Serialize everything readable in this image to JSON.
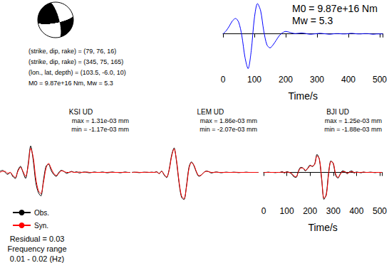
{
  "mechanism": {
    "strike": 79,
    "dip": 76,
    "rake": 16,
    "color": "#000000"
  },
  "source_info": [
    "(strike, dip, rake) = (79, 76, 16)",
    "(strike, dip, rake) = (345, 75, 165)",
    "(lon., lat, depth) = (103.5, -6.0, 10)",
    "M0 = 9.87e+16 Nm, Mw = 5.3"
  ],
  "footer": [
    "Residual = 0.03",
    "Frequency range",
    "0.01 - 0.02 (Hz)"
  ],
  "chart_data": [
    {
      "type": "line",
      "annotations": [
        "M0 = 9.87e+16 Nm",
        "Mw = 5.3"
      ],
      "xlabel": "Time/s",
      "x": [
        0,
        10,
        20,
        30,
        40,
        50,
        60,
        70,
        80,
        90,
        100,
        110,
        120,
        130,
        140,
        150,
        160,
        170,
        180,
        190,
        200,
        210,
        220,
        230,
        240,
        250,
        260,
        270,
        280,
        290,
        300,
        310,
        320,
        330,
        340,
        350,
        360,
        370,
        380,
        390,
        400,
        410,
        420,
        430,
        440,
        450,
        460,
        470,
        480,
        490,
        500,
        510
      ],
      "xlim": [
        0,
        510
      ],
      "xticks": [
        0,
        100,
        200,
        300,
        400,
        500
      ],
      "ylim": [
        -1.2,
        1.05
      ],
      "grid": false,
      "tick_labels": "x",
      "series": [
        {
          "color": "#0000ff",
          "values": [
            0.0,
            0.1,
            0.25,
            0.42,
            0.5,
            0.38,
            -0.05,
            -0.75,
            -1.12,
            -0.55,
            0.5,
            0.98,
            0.75,
            0.1,
            -0.35,
            -0.45,
            -0.35,
            -0.2,
            -0.05,
            0.04,
            0.08,
            0.06,
            0.03,
            0.01,
            0.02,
            0.03,
            0.02,
            0.0,
            -0.01,
            0.0,
            0.01,
            0.02,
            0.01,
            0.0,
            -0.01,
            0.0,
            0.01,
            0.01,
            0.0,
            0.0,
            0.01,
            0.02,
            0.01,
            0.0,
            0.0,
            0.01,
            0.01,
            0.0,
            -0.01,
            0.0,
            0.0,
            0.0
          ]
        }
      ]
    },
    {
      "type": "line",
      "title": "KSI UD",
      "annotations": [
        "max = 1.31e-03 mm",
        "min = -1.17e-03 mm"
      ],
      "x": [
        0,
        10,
        20,
        30,
        40,
        50,
        60,
        70,
        80,
        90,
        100,
        110,
        120,
        130,
        140,
        150,
        160,
        170,
        180,
        190,
        200,
        210,
        220,
        230,
        240,
        250,
        260,
        270,
        280,
        290,
        300,
        310,
        320,
        330,
        340,
        350,
        360,
        370,
        380,
        390,
        400,
        410,
        420,
        430,
        440,
        450,
        460,
        470,
        480,
        490,
        500,
        510
      ],
      "xlim": [
        0,
        510
      ],
      "ylim": [
        -0.0015,
        0.0015
      ],
      "grid": false,
      "tick_labels": false,
      "legend": "bottom left",
      "series": [
        {
          "name": "Obs.",
          "color": "#000000",
          "values": [
            5e-05,
            0.0001,
            0.0,
            -0.0001,
            0.0,
            -0.0002,
            -0.0003,
            0.0001,
            0.0003,
            0.0,
            -0.0003,
            0.0004,
            0.00131,
            0.0006,
            -0.0005,
            -0.001,
            -0.00117,
            -0.0004,
            0.0003,
            0.0004,
            0.0001,
            -0.0001,
            -0.0002,
            0.0,
            0.0001,
            5e-05,
            -5e-05,
            0.0,
            5e-05,
            0.0,
            3e-05,
            -3e-05,
            0.0,
            2e-05,
            0.0,
            -2e-05,
            0.0,
            2e-05,
            0.0,
            0.0,
            2e-05,
            0.0,
            -2e-05,
            0.0,
            2e-05,
            0.0,
            0.0,
            -2e-05,
            0.0,
            2e-05,
            0.0,
            0.0
          ]
        },
        {
          "name": "Syn.",
          "color": "#ff0000",
          "values": [
            0.0,
            5e-05,
            5e-05,
            -5e-05,
            0.0,
            -0.00015,
            -0.00025,
            5e-05,
            0.00025,
            5e-05,
            -0.0002,
            0.0003,
            0.0012,
            0.00075,
            -0.0003,
            -0.0009,
            -0.00105,
            -0.0005,
            0.0002,
            0.00045,
            0.0002,
            -5e-05,
            -0.00015,
            -5e-05,
            8e-05,
            5e-05,
            0.0,
            0.0,
            3e-05,
            0.0,
            0.0,
            2e-05,
            0.0,
            0.0,
            2e-05,
            0.0,
            0.0,
            0.0,
            0.0,
            0.0,
            0.0,
            0.0,
            0.0,
            1e-05,
            0.0,
            0.0,
            0.0,
            0.0,
            0.0,
            0.0,
            0.0,
            0.0
          ]
        }
      ]
    },
    {
      "type": "line",
      "title": "LEM UD",
      "annotations": [
        "max = 1.86e-03 mm",
        "min = -2.07e-03 mm"
      ],
      "x": [
        0,
        10,
        20,
        30,
        40,
        50,
        60,
        70,
        80,
        90,
        100,
        110,
        120,
        130,
        140,
        150,
        160,
        170,
        180,
        190,
        200,
        210,
        220,
        230,
        240,
        250,
        260,
        270,
        280,
        290,
        300,
        310,
        320,
        330,
        340,
        350,
        360,
        370,
        380,
        390,
        400,
        410,
        420,
        430,
        440,
        450,
        460,
        470,
        480,
        490,
        500,
        510
      ],
      "xlim": [
        0,
        510
      ],
      "ylim": [
        -0.0023,
        0.0023
      ],
      "grid": false,
      "tick_labels": false,
      "series": [
        {
          "name": "Obs.",
          "color": "#000000",
          "values": [
            0.0,
            2e-05,
            0.0,
            -2e-05,
            0.0,
            2e-05,
            0.0,
            0.0,
            2e-05,
            0.0,
            5e-05,
            -0.0001,
            0.0001,
            -0.0002,
            -0.0004,
            0.0002,
            0.0013,
            0.00186,
            0.0008,
            -0.0008,
            -0.0019,
            -0.00207,
            -0.001,
            0.0004,
            0.0008,
            0.0005,
            0.0,
            -0.0003,
            -0.0002,
            0.0,
            0.0001,
            5e-05,
            -5e-05,
            0.0,
            3e-05,
            0.0,
            -3e-05,
            0.0,
            2e-05,
            0.0,
            0.0,
            2e-05,
            0.0,
            -2e-05,
            0.0,
            0.0,
            2e-05,
            0.0,
            0.0,
            0.0,
            0.0,
            0.0
          ]
        },
        {
          "name": "Syn.",
          "color": "#ff0000",
          "values": [
            0.0,
            0.0,
            2e-05,
            0.0,
            0.0,
            0.0,
            2e-05,
            0.0,
            0.0,
            0.0,
            3e-05,
            -8e-05,
            8e-05,
            -0.00015,
            -0.00035,
            0.00015,
            0.0012,
            0.0018,
            0.0009,
            -0.0007,
            -0.0018,
            -0.002,
            -0.0011,
            0.0003,
            0.00075,
            0.00055,
            5e-05,
            -0.00025,
            -0.0002,
            0.0,
            8e-05,
            5e-05,
            0.0,
            0.0,
            2e-05,
            0.0,
            0.0,
            0.0,
            0.0,
            0.0,
            0.0,
            0.0,
            1e-05,
            0.0,
            0.0,
            0.0,
            0.0,
            0.0,
            0.0,
            0.0,
            0.0,
            0.0
          ]
        }
      ]
    },
    {
      "type": "line",
      "title": "BJI UD",
      "annotations": [
        "max = 1.25e-03 mm",
        "min = -1.88e-03 mm"
      ],
      "xlabel": "Time/s",
      "x": [
        0,
        10,
        20,
        30,
        40,
        50,
        60,
        70,
        80,
        90,
        100,
        110,
        120,
        130,
        140,
        150,
        160,
        170,
        180,
        190,
        200,
        210,
        220,
        230,
        240,
        250,
        260,
        270,
        280,
        290,
        300,
        310,
        320,
        330,
        340,
        350,
        360,
        370,
        380,
        390,
        400,
        410,
        420,
        430,
        440,
        450,
        460,
        470,
        480,
        490,
        500,
        510
      ],
      "xlim": [
        0,
        510
      ],
      "xticks": [
        0,
        100,
        200,
        300,
        400,
        500
      ],
      "ylim": [
        -0.0021,
        0.0021
      ],
      "grid": false,
      "tick_labels": "x",
      "series": [
        {
          "name": "Obs.",
          "color": "#000000",
          "values": [
            0.0,
            0.0,
            2e-05,
            0.0,
            0.0,
            -2e-05,
            0.0,
            0.0,
            5e-05,
            -5e-05,
            5e-05,
            0.0,
            -0.0001,
            -0.0003,
            -0.00035,
            0.0001,
            0.00035,
            0.0003,
            0.0001,
            0.0003,
            0.0005,
            0.0004,
            0.0006,
            0.00125,
            0.0009,
            -0.0005,
            -0.00188,
            -0.0015,
            0.0,
            0.0008,
            0.0006,
            -0.0002,
            -0.0004,
            -0.0001,
            0.0001,
            5e-05,
            -0.0001,
            5e-05,
            0.0001,
            -5e-05,
            3e-05,
            0.0,
            -3e-05,
            2e-05,
            0.0,
            0.0,
            2e-05,
            0.0,
            -2e-05,
            0.0,
            0.0,
            0.0
          ]
        },
        {
          "name": "Syn.",
          "color": "#ff0000",
          "values": [
            0.0,
            0.0,
            0.0,
            0.0,
            0.0,
            0.0,
            0.0,
            0.0,
            2e-05,
            0.0,
            2e-05,
            0.0,
            -5e-05,
            -0.00025,
            -0.0003,
            5e-05,
            0.0003,
            0.0003,
            0.00015,
            0.00025,
            0.00045,
            0.00045,
            0.00055,
            0.00115,
            0.00095,
            -0.0004,
            -0.0018,
            -0.0016,
            -0.0001,
            0.00075,
            0.00065,
            -0.0001,
            -0.00035,
            -0.00015,
            5e-05,
            5e-05,
            -5e-05,
            0.0,
            5e-05,
            0.0,
            0.0,
            0.0,
            0.0,
            2e-05,
            0.0,
            0.0,
            0.0,
            0.0,
            0.0,
            0.0,
            0.0,
            0.0
          ]
        }
      ]
    }
  ]
}
